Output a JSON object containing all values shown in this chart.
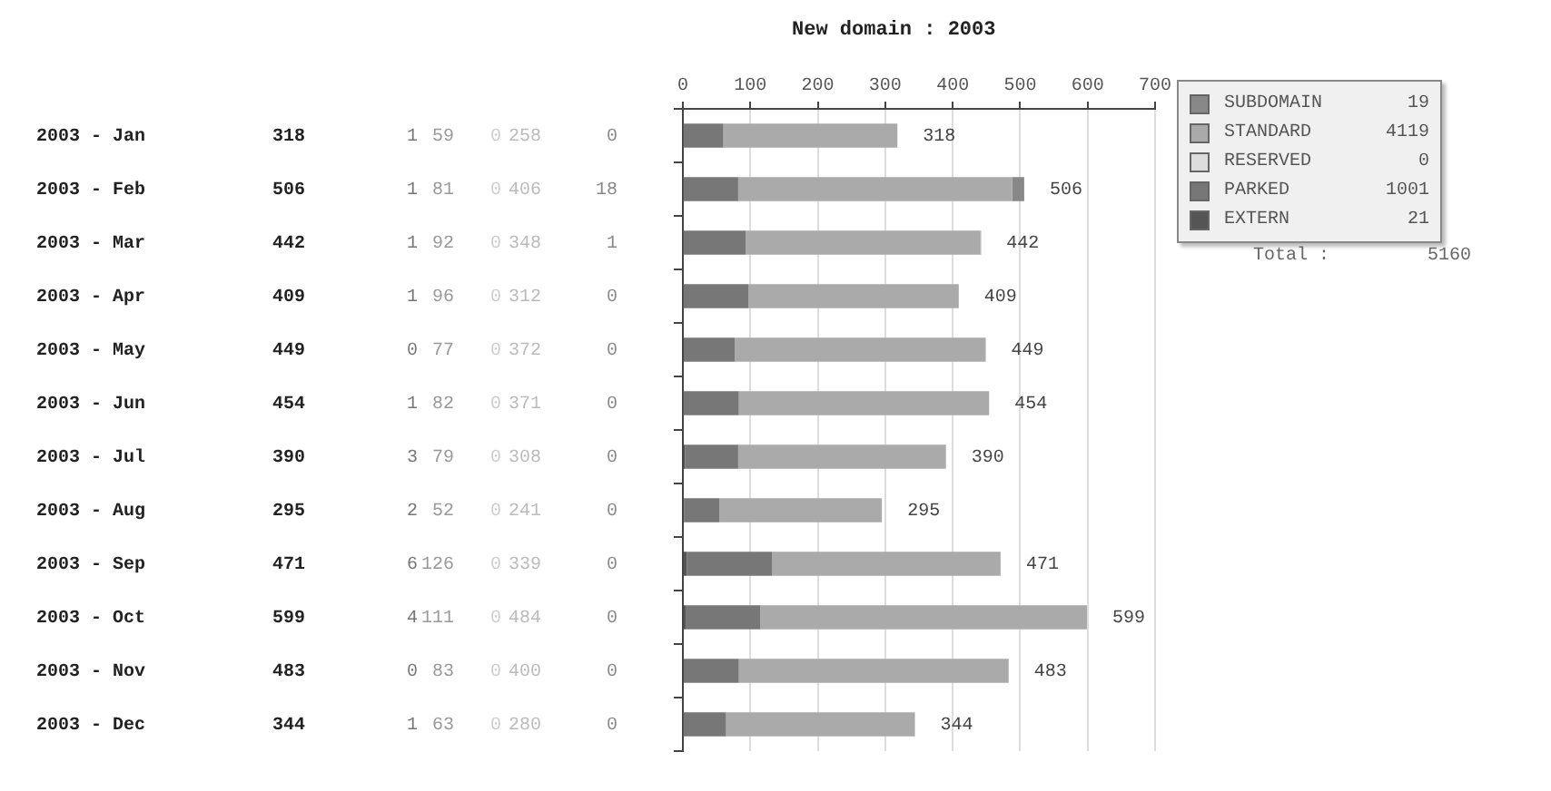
{
  "chart_data": {
    "type": "bar",
    "orientation": "horizontal",
    "stacked": true,
    "title": "New domain : 2003",
    "categories": [
      "2003 - Jan",
      "2003 - Feb",
      "2003 - Mar",
      "2003 - Apr",
      "2003 - May",
      "2003 - Jun",
      "2003 - Jul",
      "2003 - Aug",
      "2003 - Sep",
      "2003 - Oct",
      "2003 - Nov",
      "2003 - Dec"
    ],
    "series": [
      {
        "name": "EXTERN",
        "color": "#555555",
        "values": [
          1,
          1,
          1,
          1,
          0,
          1,
          3,
          2,
          6,
          4,
          0,
          1
        ]
      },
      {
        "name": "PARKED",
        "color": "#777777",
        "values": [
          59,
          81,
          92,
          96,
          77,
          82,
          79,
          52,
          126,
          111,
          83,
          63
        ]
      },
      {
        "name": "RESERVED",
        "color": "#dddddd",
        "values": [
          0,
          0,
          0,
          0,
          0,
          0,
          0,
          0,
          0,
          0,
          0,
          0
        ]
      },
      {
        "name": "STANDARD",
        "color": "#aaaaaa",
        "values": [
          258,
          406,
          348,
          312,
          372,
          371,
          308,
          241,
          339,
          484,
          400,
          280
        ]
      },
      {
        "name": "SUBDOMAIN",
        "color": "#888888",
        "values": [
          0,
          18,
          1,
          0,
          0,
          0,
          0,
          0,
          0,
          0,
          0,
          0
        ]
      }
    ],
    "totals": [
      "318",
      "506",
      "442",
      "409",
      "449",
      "454",
      "390",
      "295",
      "471",
      "599",
      "483",
      "344"
    ],
    "x2lim": [
      0,
      700
    ],
    "x2ticks": [
      0,
      100,
      200,
      300,
      400,
      500,
      600,
      700
    ],
    "grid": "x",
    "legend": "right",
    "data_labels": true,
    "annotations": [
      "21",
      "1001",
      "0",
      "4119",
      "19",
      "Total :",
      "5160"
    ]
  }
}
